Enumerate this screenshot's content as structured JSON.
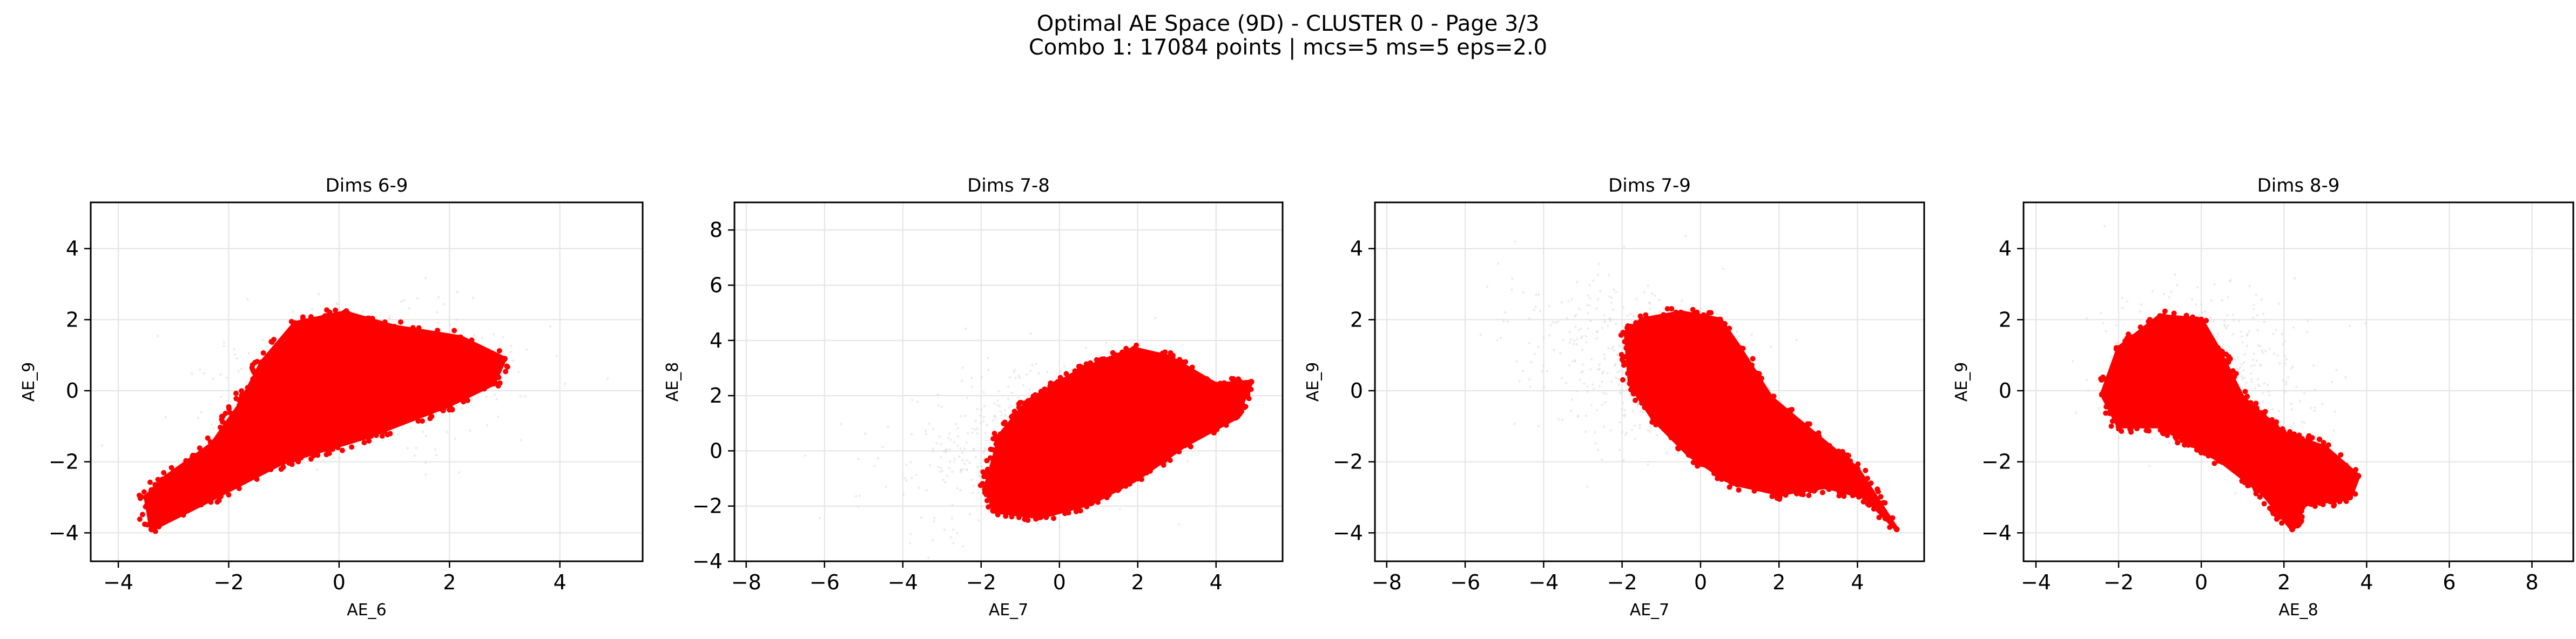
{
  "figure": {
    "title_line1": "Optimal AE Space (9D) - CLUSTER 0 - Page 3/3",
    "title_line2": "Combo 1: 17084 points | mcs=5 ms=5 eps=2.0"
  },
  "colors": {
    "cluster_points": "#ff0000",
    "background_points": "#d3d3d3",
    "grid": "#e3e3e3",
    "axes": "#000000"
  },
  "chart_data": [
    {
      "type": "scatter",
      "title": "Dims 6-9",
      "xlabel": "AE_6",
      "ylabel": "AE_9",
      "xlim": [
        -4.5,
        5.5
      ],
      "ylim": [
        -4.8,
        5.3
      ],
      "xticks": [
        -4,
        -2,
        0,
        2,
        4
      ],
      "yticks": [
        -4,
        -2,
        0,
        2,
        4
      ],
      "grid": true,
      "series": [
        {
          "role": "background",
          "color": "#d3d3d3",
          "clouds": [
            {
              "center": [
                0.3,
                0.2
              ],
              "spread": [
                1.4,
                1.0
              ],
              "rotation_deg": 25,
              "count": 420
            }
          ]
        },
        {
          "role": "cluster",
          "color": "#ff0000",
          "polygon": [
            [
              -3.5,
              -3.0
            ],
            [
              -3.4,
              -3.9
            ],
            [
              -2.5,
              -3.2
            ],
            [
              -1.0,
              -2.0
            ],
            [
              0.5,
              -1.3
            ],
            [
              2.0,
              -0.4
            ],
            [
              2.8,
              0.2
            ],
            [
              3.0,
              0.9
            ],
            [
              2.2,
              1.5
            ],
            [
              1.0,
              1.8
            ],
            [
              0.1,
              2.2
            ],
            [
              -0.8,
              1.9
            ],
            [
              -1.4,
              0.8
            ],
            [
              -1.8,
              -0.4
            ],
            [
              -2.3,
              -1.5
            ],
            [
              -3.2,
              -2.5
            ]
          ]
        }
      ]
    },
    {
      "type": "scatter",
      "title": "Dims 7-8",
      "xlabel": "AE_7",
      "ylabel": "AE_8",
      "xlim": [
        -8.3,
        5.7
      ],
      "ylim": [
        -4,
        9
      ],
      "xticks": [
        -8,
        -6,
        -4,
        -2,
        0,
        2,
        4
      ],
      "yticks": [
        -4,
        -2,
        0,
        2,
        4,
        6,
        8
      ],
      "grid": true,
      "series": [
        {
          "role": "background",
          "color": "#d3d3d3",
          "clouds": [
            {
              "center": [
                -1.2,
                0.2
              ],
              "spread": [
                1.8,
                1.3
              ],
              "rotation_deg": 30,
              "count": 420
            }
          ]
        },
        {
          "role": "cluster",
          "color": "#ff0000",
          "polygon": [
            [
              -1.9,
              -1.4
            ],
            [
              -1.6,
              -2.2
            ],
            [
              -0.5,
              -2.4
            ],
            [
              0.8,
              -1.9
            ],
            [
              2.0,
              -1.0
            ],
            [
              3.2,
              0.2
            ],
            [
              4.5,
              1.2
            ],
            [
              4.9,
              2.5
            ],
            [
              4.0,
              2.4
            ],
            [
              2.8,
              3.4
            ],
            [
              1.9,
              3.7
            ],
            [
              0.5,
              2.9
            ],
            [
              -0.8,
              1.8
            ],
            [
              -1.5,
              0.6
            ]
          ]
        }
      ]
    },
    {
      "type": "scatter",
      "title": "Dims 7-9",
      "xlabel": "AE_7",
      "ylabel": "AE_9",
      "xlim": [
        -8.3,
        5.7
      ],
      "ylim": [
        -4.8,
        5.3
      ],
      "xticks": [
        -8,
        -6,
        -4,
        -2,
        0,
        2,
        4
      ],
      "yticks": [
        -4,
        -2,
        0,
        2,
        4
      ],
      "grid": true,
      "series": [
        {
          "role": "background",
          "color": "#d3d3d3",
          "clouds": [
            {
              "center": [
                -1.5,
                0.6
              ],
              "spread": [
                1.7,
                1.1
              ],
              "rotation_deg": -30,
              "count": 420
            }
          ]
        },
        {
          "role": "cluster",
          "color": "#ff0000",
          "polygon": [
            [
              -1.9,
              1.6
            ],
            [
              -1.5,
              2.0
            ],
            [
              -0.5,
              2.2
            ],
            [
              0.5,
              2.0
            ],
            [
              1.0,
              1.2
            ],
            [
              1.8,
              -0.2
            ],
            [
              3.0,
              -1.3
            ],
            [
              4.0,
              -2.2
            ],
            [
              5.0,
              -3.9
            ],
            [
              4.2,
              -3.0
            ],
            [
              3.2,
              -2.7
            ],
            [
              2.0,
              -2.9
            ],
            [
              0.8,
              -2.6
            ],
            [
              -0.3,
              -1.8
            ],
            [
              -1.2,
              -0.8
            ],
            [
              -1.8,
              0.2
            ]
          ]
        }
      ]
    },
    {
      "type": "scatter",
      "title": "Dims 8-9",
      "xlabel": "AE_8",
      "ylabel": "AE_9",
      "xlim": [
        -4.3,
        9.0
      ],
      "ylim": [
        -4.8,
        5.3
      ],
      "xticks": [
        -4,
        -2,
        0,
        2,
        4,
        6,
        8
      ],
      "yticks": [
        -4,
        -2,
        0,
        2,
        4
      ],
      "grid": true,
      "series": [
        {
          "role": "background",
          "color": "#d3d3d3",
          "clouds": [
            {
              "center": [
                0.2,
                0.6
              ],
              "spread": [
                1.4,
                1.2
              ],
              "rotation_deg": -25,
              "count": 420
            }
          ]
        },
        {
          "role": "cluster",
          "color": "#ff0000",
          "polygon": [
            [
              -2.4,
              -0.1
            ],
            [
              -2.0,
              1.2
            ],
            [
              -1.0,
              2.1
            ],
            [
              0.0,
              2.0
            ],
            [
              0.4,
              1.2
            ],
            [
              1.0,
              -0.2
            ],
            [
              2.0,
              -1.2
            ],
            [
              3.0,
              -1.6
            ],
            [
              3.8,
              -2.4
            ],
            [
              3.6,
              -3.0
            ],
            [
              2.5,
              -3.2
            ],
            [
              2.2,
              -3.9
            ],
            [
              1.5,
              -2.9
            ],
            [
              0.5,
              -2.0
            ],
            [
              -1.0,
              -1.0
            ],
            [
              -2.0,
              -1.0
            ]
          ]
        }
      ]
    }
  ]
}
